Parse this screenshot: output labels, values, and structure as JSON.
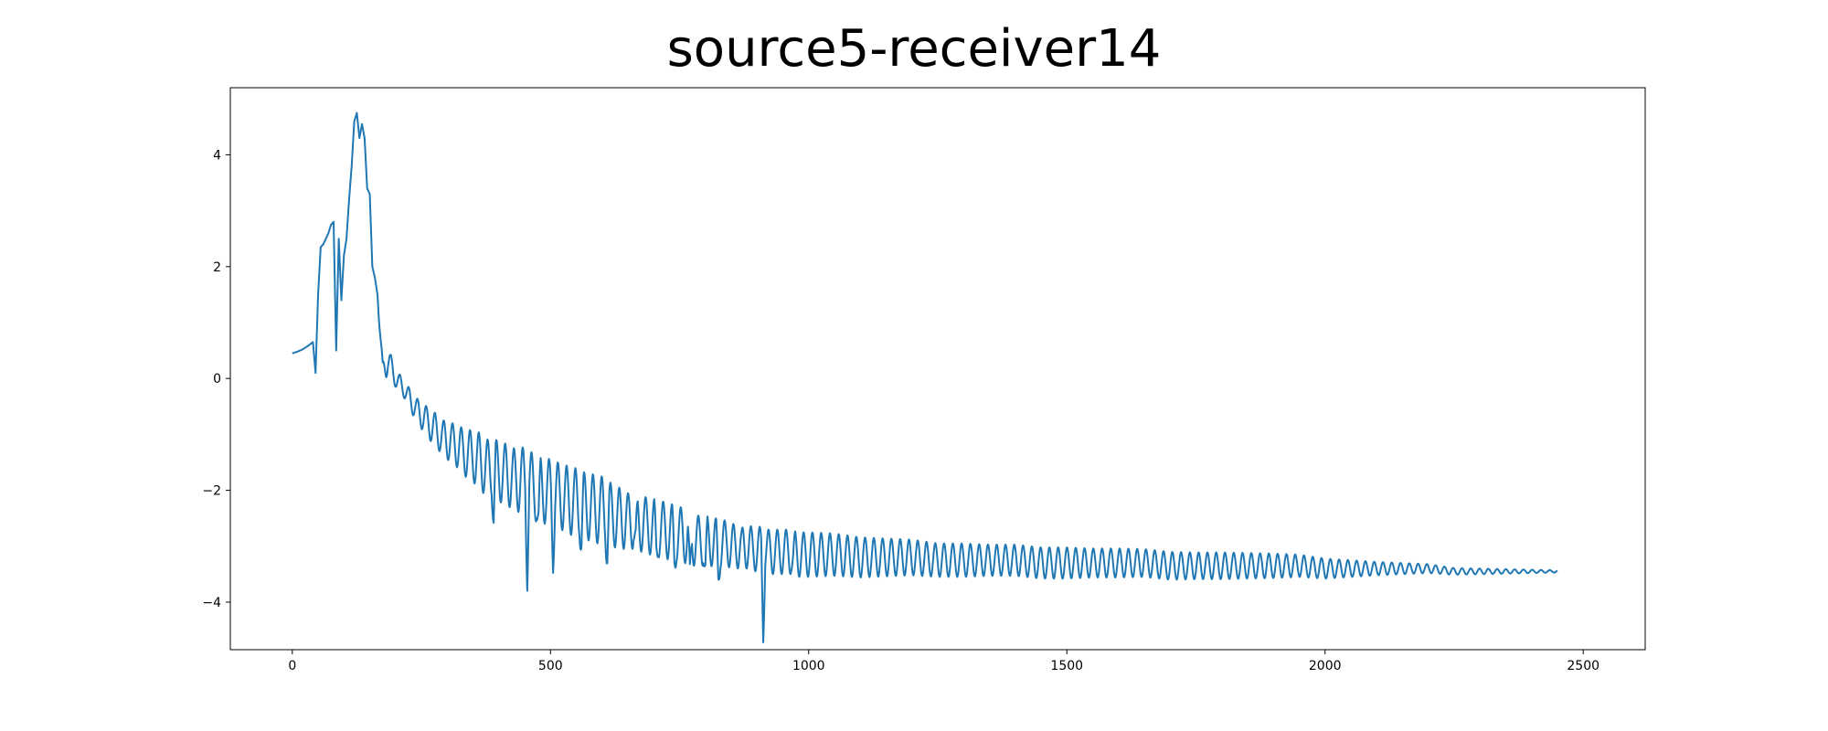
{
  "chart_data": {
    "type": "line",
    "title": "source5-receiver14",
    "xlabel": "",
    "ylabel": "",
    "xlim": [
      -120,
      2620
    ],
    "ylim": [
      -4.85,
      5.2
    ],
    "xticks": [
      0,
      500,
      1000,
      1500,
      2000,
      2500
    ],
    "yticks": [
      -4,
      -2,
      0,
      2,
      4
    ],
    "xtick_labels": [
      "0",
      "500",
      "1000",
      "1500",
      "2000",
      "2500"
    ],
    "ytick_labels": [
      "−4",
      "−2",
      "0",
      "2",
      "4"
    ],
    "grid": false,
    "series": [
      {
        "color": "#1f77b4",
        "x": [
          0,
          10,
          20,
          30,
          40,
          45,
          50,
          55,
          60,
          65,
          70,
          75,
          80,
          85,
          90,
          95,
          100,
          105,
          110,
          115,
          120,
          125,
          130,
          135,
          140,
          145,
          150,
          155,
          160,
          165,
          170,
          175,
          180,
          185,
          190,
          195,
          200,
          210,
          220,
          230,
          240,
          250,
          260,
          270,
          280,
          290,
          300,
          310,
          320,
          330,
          340,
          350,
          360,
          370,
          380,
          390,
          400,
          410,
          420,
          430,
          440,
          450,
          460,
          470,
          480,
          490,
          500,
          510,
          520,
          530,
          540,
          550,
          560,
          570,
          580,
          590,
          600,
          610,
          620,
          630,
          640,
          650,
          660,
          670,
          680,
          690,
          700,
          710,
          720,
          730,
          740,
          750,
          760,
          770,
          780,
          790,
          800,
          810,
          820,
          830,
          840,
          850,
          860,
          870,
          880,
          890,
          900,
          905,
          910,
          915,
          920,
          930,
          940,
          950,
          960,
          970,
          980,
          990,
          1000,
          1050,
          1100,
          1150,
          1200,
          1250,
          1300,
          1350,
          1400,
          1450,
          1500,
          1550,
          1600,
          1650,
          1700,
          1750,
          1800,
          1850,
          1900,
          1950,
          2000,
          2050,
          2100,
          2150,
          2200,
          2250,
          2300,
          2350,
          2400,
          2450,
          2500
        ],
        "mean": [
          0.45,
          0.48,
          0.52,
          0.58,
          0.65,
          0.1,
          1.5,
          2.35,
          2.4,
          2.5,
          2.6,
          2.75,
          2.8,
          0.5,
          2.5,
          1.4,
          2.2,
          2.5,
          3.2,
          3.8,
          4.6,
          4.75,
          4.3,
          4.55,
          4.3,
          3.4,
          3.3,
          2.0,
          1.8,
          1.5,
          0.8,
          0.0,
          0.3,
          0.4,
          0.2,
          0.1,
          0.0,
          -0.1,
          -0.25,
          -0.4,
          -0.55,
          -0.65,
          -0.75,
          -0.85,
          -0.95,
          -1.05,
          -1.1,
          -1.15,
          -1.2,
          -1.3,
          -1.35,
          -1.4,
          -1.45,
          -1.55,
          -1.6,
          -1.6,
          -1.65,
          -1.7,
          -1.75,
          -1.8,
          -1.8,
          -1.85,
          -1.9,
          -1.95,
          -2.0,
          -2.0,
          -2.05,
          -2.1,
          -2.1,
          -2.15,
          -2.2,
          -2.2,
          -2.25,
          -2.3,
          -2.3,
          -2.35,
          -2.35,
          -2.4,
          -2.45,
          -2.5,
          -2.5,
          -2.55,
          -2.55,
          -2.6,
          -2.6,
          -2.65,
          -2.65,
          -2.7,
          -2.7,
          -2.75,
          -2.75,
          -2.8,
          -2.8,
          -2.85,
          -2.9,
          -2.9,
          -2.9,
          -2.9,
          -2.95,
          -2.95,
          -2.95,
          -3.0,
          -3.0,
          -3.0,
          -3.0,
          -3.05,
          -3.05,
          -3.05,
          -3.05,
          -3.05,
          -3.1,
          -3.1,
          -3.1,
          -3.1,
          -3.1,
          -3.1,
          -3.15,
          -3.15,
          -3.15,
          -3.15,
          -3.2,
          -3.2,
          -3.2,
          -3.25,
          -3.25,
          -3.25,
          -3.25,
          -3.3,
          -3.3,
          -3.3,
          -3.3,
          -3.3,
          -3.35,
          -3.35,
          -3.35,
          -3.35,
          -3.35,
          -3.35,
          -3.4,
          -3.4,
          -3.4,
          -3.4,
          -3.4,
          -3.45,
          -3.45,
          -3.45,
          -3.45,
          -3.45,
          -3.45
        ],
        "amp": [
          0.0,
          0.0,
          0.0,
          0.0,
          0.0,
          0.0,
          0.0,
          0.0,
          0.0,
          0.0,
          0.0,
          0.0,
          0.0,
          0.0,
          0.0,
          0.0,
          0.0,
          0.0,
          0.0,
          0.0,
          0.0,
          0.0,
          0.0,
          0.0,
          0.0,
          0.0,
          0.0,
          0.0,
          0.0,
          0.0,
          0.15,
          0.3,
          0.35,
          0.3,
          0.25,
          0.2,
          0.15,
          0.15,
          0.15,
          0.2,
          0.2,
          0.25,
          0.25,
          0.3,
          0.3,
          0.3,
          0.35,
          0.35,
          0.4,
          0.4,
          0.45,
          0.45,
          0.5,
          0.5,
          0.5,
          0.5,
          0.55,
          0.55,
          0.55,
          0.55,
          0.6,
          0.6,
          0.6,
          0.6,
          0.6,
          0.6,
          0.6,
          0.6,
          0.6,
          0.6,
          0.6,
          0.6,
          0.6,
          0.6,
          0.6,
          0.6,
          0.6,
          0.6,
          0.55,
          0.55,
          0.55,
          0.5,
          0.5,
          0.5,
          0.5,
          0.5,
          0.5,
          0.5,
          0.5,
          0.5,
          0.5,
          0.5,
          0.5,
          0.5,
          0.45,
          0.45,
          0.45,
          0.45,
          0.45,
          0.45,
          0.4,
          0.4,
          0.4,
          0.4,
          0.4,
          0.4,
          0.4,
          0.4,
          0.4,
          0.4,
          0.4,
          0.4,
          0.4,
          0.4,
          0.4,
          0.4,
          0.4,
          0.4,
          0.4,
          0.38,
          0.36,
          0.34,
          0.32,
          0.3,
          0.3,
          0.28,
          0.28,
          0.28,
          0.28,
          0.26,
          0.26,
          0.25,
          0.25,
          0.24,
          0.24,
          0.23,
          0.22,
          0.2,
          0.18,
          0.15,
          0.12,
          0.1,
          0.08,
          0.06,
          0.05,
          0.04,
          0.03,
          0.02
        ],
        "period": 17,
        "spikes": [
          {
            "x": 390,
            "y": -2.4
          },
          {
            "x": 455,
            "y": -3.2
          },
          {
            "x": 477,
            "y": -2.6
          },
          {
            "x": 505,
            "y": -2.9
          },
          {
            "x": 560,
            "y": -2.8
          },
          {
            "x": 610,
            "y": -2.9
          },
          {
            "x": 665,
            "y": -3.05
          },
          {
            "x": 705,
            "y": -3.1
          },
          {
            "x": 740,
            "y": -3.2
          },
          {
            "x": 770,
            "y": -3.8
          },
          {
            "x": 800,
            "y": -3.5
          },
          {
            "x": 825,
            "y": -3.5
          },
          {
            "x": 870,
            "y": -3.1
          },
          {
            "x": 912,
            "y": -4.4
          },
          {
            "x": 970,
            "y": -3.3
          }
        ]
      }
    ]
  }
}
